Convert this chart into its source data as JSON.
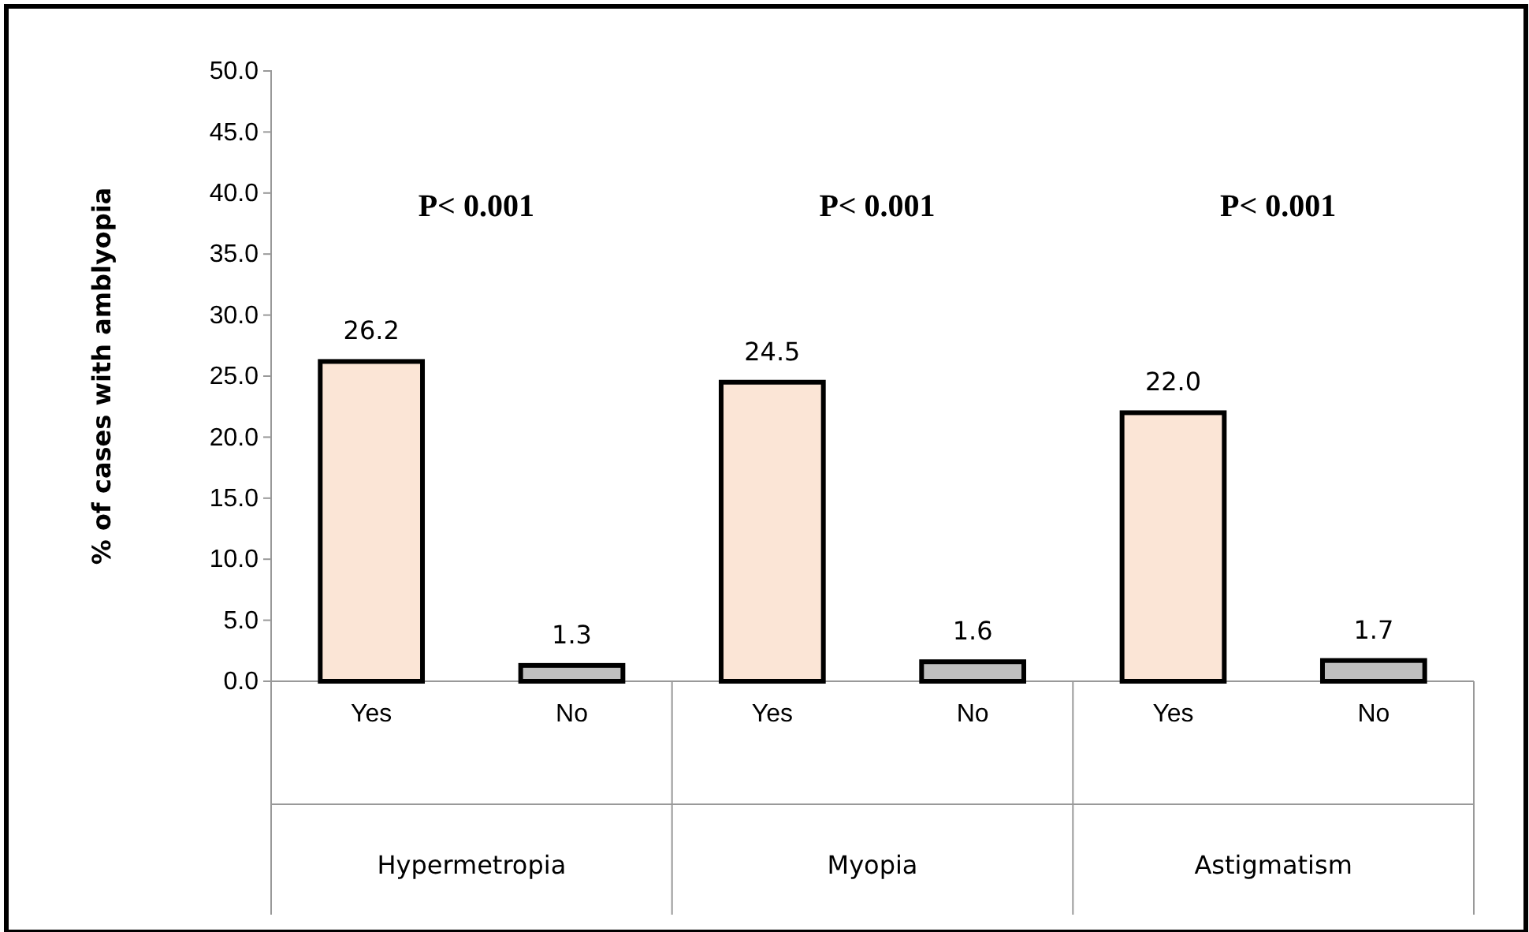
{
  "chart_data": {
    "type": "bar",
    "ylabel": "% of cases with amblyopia",
    "categories": [
      "Yes",
      "No",
      "Yes",
      "No",
      "Yes",
      "No"
    ],
    "values": [
      26.2,
      1.3,
      24.5,
      1.6,
      22.0,
      1.7
    ],
    "value_labels": [
      "26.2",
      "1.3",
      "24.5",
      "1.6",
      "22.0",
      "1.7"
    ],
    "colors": [
      "#fbe5d6",
      "#bfbfbf",
      "#fbe5d6",
      "#bfbfbf",
      "#fbe5d6",
      "#bfbfbf"
    ],
    "ylim": [
      0,
      50
    ],
    "yticks": [
      {
        "value": 0,
        "label": "0.0"
      },
      {
        "value": 5,
        "label": "5.0"
      },
      {
        "value": 10,
        "label": "10.0"
      },
      {
        "value": 15,
        "label": "15.0"
      },
      {
        "value": 20,
        "label": "20.0"
      },
      {
        "value": 25,
        "label": "25.0"
      },
      {
        "value": 30,
        "label": "30.0"
      },
      {
        "value": 35,
        "label": "35.0"
      },
      {
        "value": 40,
        "label": "40.0"
      },
      {
        "value": 45,
        "label": "45.0"
      },
      {
        "value": 50,
        "label": "50.0"
      }
    ],
    "annotations": [
      "P< 0.001",
      "P< 0.001",
      "P< 0.001",
      "Hypermetropia",
      "Myopia",
      "Astigmatism"
    ],
    "grid": false
  }
}
